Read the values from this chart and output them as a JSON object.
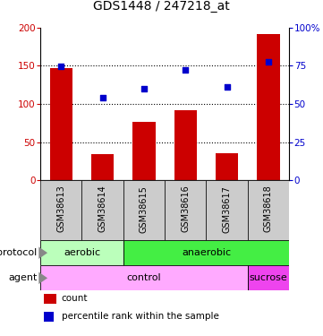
{
  "title": "GDS1448 / 247218_at",
  "samples": [
    "GSM38613",
    "GSM38614",
    "GSM38615",
    "GSM38616",
    "GSM38617",
    "GSM38618"
  ],
  "counts": [
    147,
    35,
    77,
    92,
    36,
    192
  ],
  "percentile_ranks": [
    74.5,
    54,
    60,
    72.5,
    61,
    77.5
  ],
  "left_ylim": [
    0,
    200
  ],
  "right_ylim": [
    0,
    100
  ],
  "left_yticks": [
    0,
    50,
    100,
    150,
    200
  ],
  "right_yticks": [
    0,
    25,
    50,
    75,
    100
  ],
  "right_yticklabels": [
    "0",
    "25",
    "50",
    "75",
    "100%"
  ],
  "dotted_lines": [
    50,
    100,
    150
  ],
  "bar_color": "#cc0000",
  "dot_color": "#0000cc",
  "protocol_labels": [
    {
      "text": "aerobic",
      "start": 0,
      "end": 1,
      "color": "#bbffbb"
    },
    {
      "text": "anaerobic",
      "start": 2,
      "end": 5,
      "color": "#44ee44"
    }
  ],
  "agent_labels": [
    {
      "text": "control",
      "start": 0,
      "end": 4,
      "color": "#ffaaff"
    },
    {
      "text": "sucrose",
      "start": 5,
      "end": 5,
      "color": "#ee44ee"
    }
  ],
  "xlabels_bg_color": "#cccccc",
  "protocol_row_label": "protocol",
  "agent_row_label": "agent",
  "legend_count_label": "count",
  "legend_percentile_label": "percentile rank within the sample",
  "title_fontsize": 10,
  "tick_label_fontsize": 7.5,
  "row_label_fontsize": 8,
  "sample_label_fontsize": 7,
  "cell_label_fontsize": 8,
  "legend_fontsize": 7.5
}
